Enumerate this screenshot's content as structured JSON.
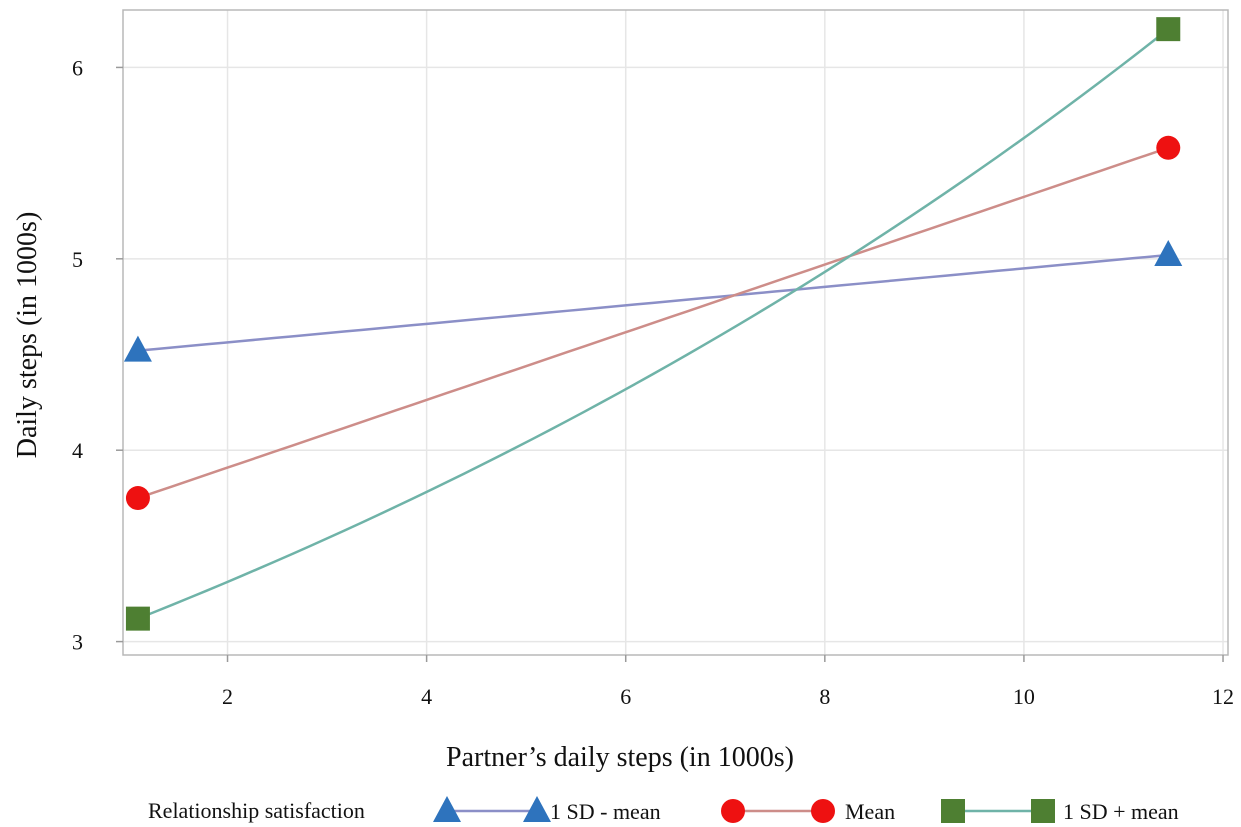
{
  "chart_data": {
    "type": "line",
    "xlabel": "Partner’s daily steps (in 1000s)",
    "ylabel": "Daily steps (in 1000s)",
    "xlim": [
      0.95,
      12.05
    ],
    "ylim": [
      2.93,
      6.3
    ],
    "xticks": [
      2,
      4,
      6,
      8,
      10,
      12
    ],
    "yticks": [
      3,
      4,
      5,
      6
    ],
    "grid": true,
    "legend": {
      "title": "Relationship satisfaction",
      "placement": "bottom"
    },
    "series": [
      {
        "name": "1 SD - mean",
        "color": "#8b8fc7",
        "marker": "triangle",
        "marker_color": "#2e73bd",
        "x": [
          1.1,
          11.45
        ],
        "y": [
          4.52,
          5.02
        ],
        "curve": "linear"
      },
      {
        "name": "Mean",
        "color": "#cd8d89",
        "marker": "circle",
        "marker_color": "#ee1111",
        "x": [
          1.1,
          11.45
        ],
        "y": [
          3.75,
          5.58
        ],
        "curve": "linear"
      },
      {
        "name": "1 SD + mean",
        "color": "#6fb3a8",
        "marker": "square",
        "marker_color": "#4e7f32",
        "x": [
          1.1,
          11.45
        ],
        "y": [
          3.12,
          6.2
        ],
        "curve": "exponential"
      }
    ]
  }
}
